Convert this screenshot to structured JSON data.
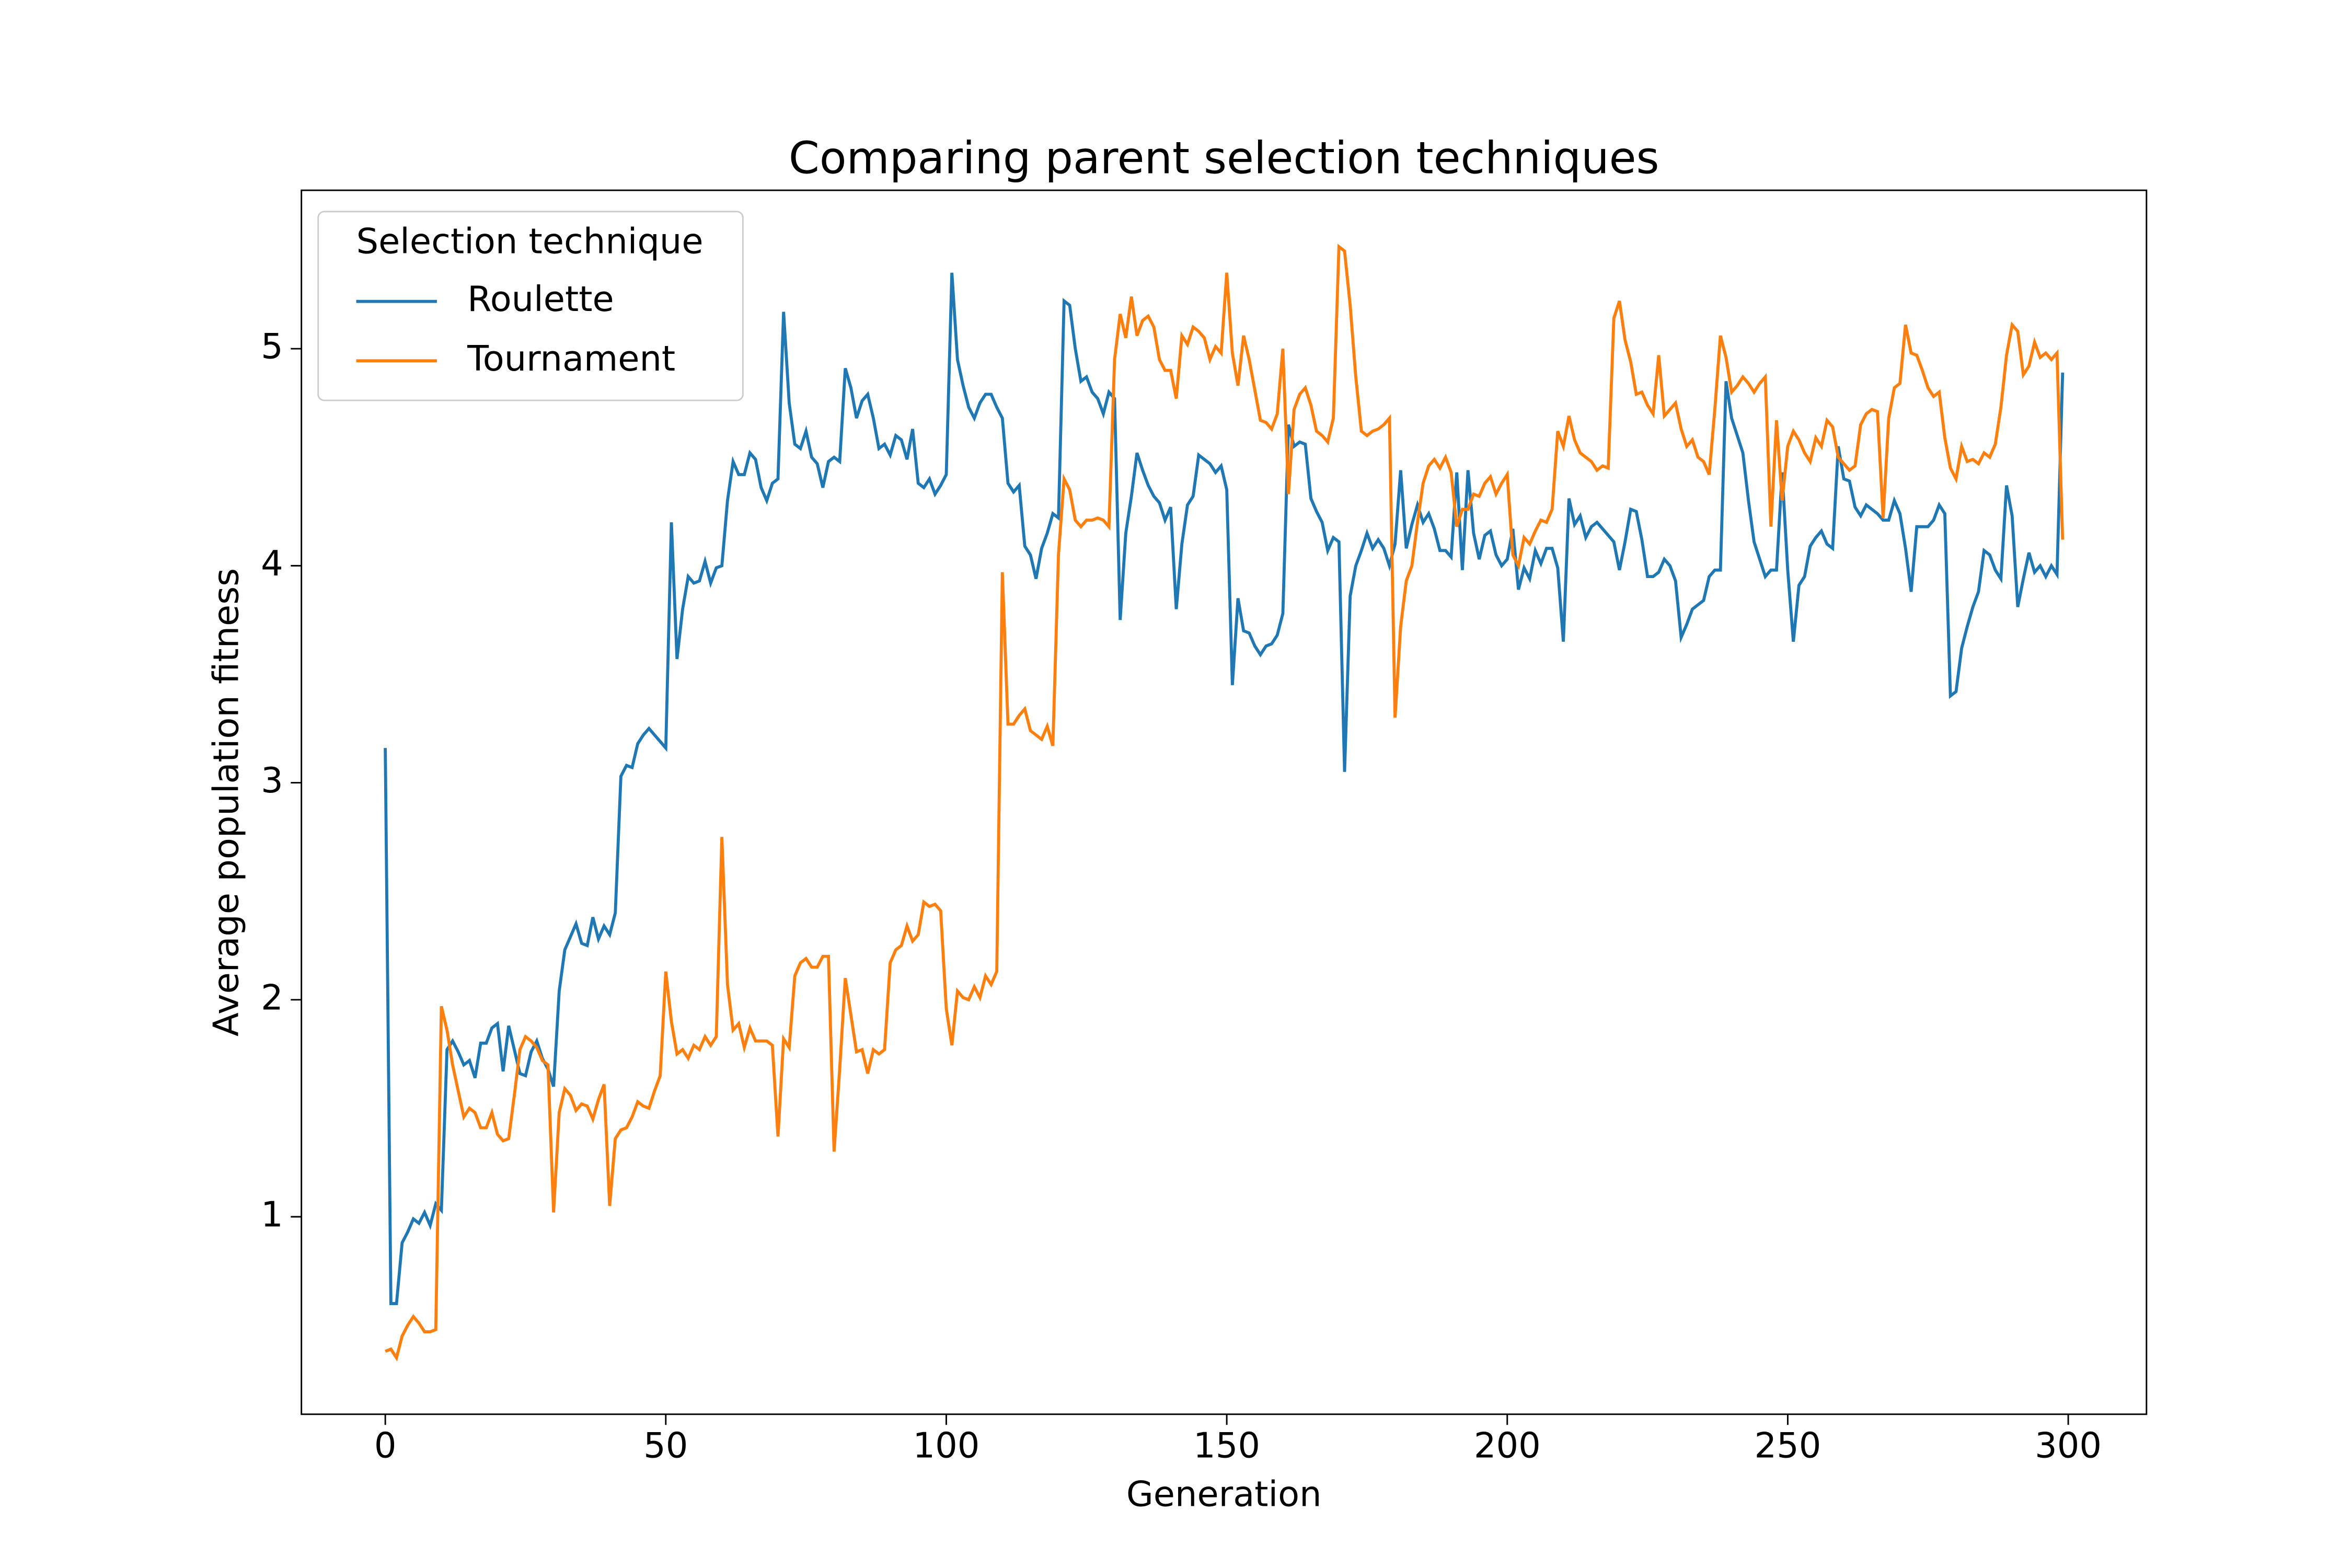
{
  "chart_data": {
    "type": "line",
    "title": "Comparing parent selection techniques",
    "xlabel": "Generation",
    "ylabel": "Average population fitness",
    "legend": "upper left",
    "legend_title": "Selection technique",
    "x": [
      0,
      1,
      2,
      3,
      4,
      5,
      6,
      7,
      8,
      9,
      10,
      11,
      12,
      13,
      14,
      15,
      16,
      17,
      18,
      19,
      20,
      21,
      22,
      23,
      24,
      25,
      26,
      27,
      28,
      29,
      30,
      31,
      32,
      33,
      34,
      35,
      36,
      37,
      38,
      39,
      40,
      41,
      42,
      43,
      44,
      45,
      46,
      47,
      48,
      49,
      50,
      51,
      52,
      53,
      54,
      55,
      56,
      57,
      58,
      59,
      60,
      61,
      62,
      63,
      64,
      65,
      66,
      67,
      68,
      69,
      70,
      71,
      72,
      73,
      74,
      75,
      76,
      77,
      78,
      79,
      80,
      81,
      82,
      83,
      84,
      85,
      86,
      87,
      88,
      89,
      90,
      91,
      92,
      93,
      94,
      95,
      96,
      97,
      98,
      99,
      100,
      101,
      102,
      103,
      104,
      105,
      106,
      107,
      108,
      109,
      110,
      111,
      112,
      113,
      114,
      115,
      116,
      117,
      118,
      119,
      120,
      121,
      122,
      123,
      124,
      125,
      126,
      127,
      128,
      129,
      130,
      131,
      132,
      133,
      134,
      135,
      136,
      137,
      138,
      139,
      140,
      141,
      142,
      143,
      144,
      145,
      146,
      147,
      148,
      149,
      150,
      151,
      152,
      153,
      154,
      155,
      156,
      157,
      158,
      159,
      160,
      161,
      162,
      163,
      164,
      165,
      166,
      167,
      168,
      169,
      170,
      171,
      172,
      173,
      174,
      175,
      176,
      177,
      178,
      179,
      180,
      181,
      182,
      183,
      184,
      185,
      186,
      187,
      188,
      189,
      190,
      191,
      192,
      193,
      194,
      195,
      196,
      197,
      198,
      199,
      200,
      201,
      202,
      203,
      204,
      205,
      206,
      207,
      208,
      209,
      210,
      211,
      212,
      213,
      214,
      215,
      216,
      217,
      218,
      219,
      220,
      221,
      222,
      223,
      224,
      225,
      226,
      227,
      228,
      229,
      230,
      231,
      232,
      233,
      234,
      235,
      236,
      237,
      238,
      239,
      240,
      241,
      242,
      243,
      244,
      245,
      246,
      247,
      248,
      249,
      250,
      251,
      252,
      253,
      254,
      255,
      256,
      257,
      258,
      259,
      260,
      261,
      262,
      263,
      264,
      265,
      266,
      267,
      268,
      269,
      270,
      271,
      272,
      273,
      274,
      275,
      276,
      277,
      278,
      279,
      280,
      281,
      282,
      283,
      284,
      285,
      286,
      287,
      288,
      289,
      290,
      291,
      292,
      293,
      294,
      295,
      296,
      297,
      298,
      299
    ],
    "series": [
      {
        "name": "Roulette",
        "color": "#1f77b4",
        "values": [
          3.16,
          0.6,
          0.6,
          0.88,
          0.93,
          0.99,
          0.97,
          1.02,
          0.96,
          1.06,
          1.03,
          1.77,
          1.81,
          1.76,
          1.7,
          1.72,
          1.64,
          1.8,
          1.8,
          1.87,
          1.89,
          1.67,
          1.88,
          1.77,
          1.66,
          1.65,
          1.76,
          1.81,
          1.73,
          1.68,
          1.6,
          2.04,
          2.23,
          2.29,
          2.35,
          2.26,
          2.25,
          2.38,
          2.28,
          2.34,
          2.3,
          2.4,
          3.03,
          3.08,
          3.07,
          3.18,
          3.22,
          3.25,
          3.22,
          3.19,
          3.16,
          4.2,
          3.57,
          3.8,
          3.95,
          3.92,
          3.93,
          4.02,
          3.92,
          3.99,
          4.0,
          4.3,
          4.48,
          4.42,
          4.42,
          4.52,
          4.49,
          4.36,
          4.3,
          4.38,
          4.4,
          5.17,
          4.75,
          4.56,
          4.54,
          4.62,
          4.5,
          4.47,
          4.36,
          4.48,
          4.5,
          4.48,
          4.91,
          4.82,
          4.68,
          4.76,
          4.79,
          4.68,
          4.54,
          4.56,
          4.51,
          4.6,
          4.58,
          4.49,
          4.63,
          4.38,
          4.36,
          4.4,
          4.33,
          4.37,
          4.42,
          5.35,
          4.95,
          4.83,
          4.73,
          4.68,
          4.75,
          4.79,
          4.79,
          4.73,
          4.68,
          4.38,
          4.34,
          4.37,
          4.09,
          4.05,
          3.94,
          4.08,
          4.15,
          4.24,
          4.22,
          5.22,
          5.2,
          5.0,
          4.85,
          4.87,
          4.8,
          4.77,
          4.7,
          4.8,
          4.77,
          3.75,
          4.15,
          4.32,
          4.52,
          4.44,
          4.37,
          4.32,
          4.29,
          4.21,
          4.27,
          3.8,
          4.1,
          4.28,
          4.32,
          4.51,
          4.49,
          4.47,
          4.43,
          4.46,
          4.35,
          3.45,
          3.85,
          3.7,
          3.69,
          3.63,
          3.59,
          3.63,
          3.64,
          3.68,
          3.78,
          4.65,
          4.55,
          4.57,
          4.56,
          4.31,
          4.25,
          4.2,
          4.07,
          4.13,
          4.11,
          3.05,
          3.86,
          4.0,
          4.07,
          4.15,
          4.08,
          4.12,
          4.08,
          4.0,
          4.1,
          4.44,
          4.08,
          4.19,
          4.28,
          4.2,
          4.24,
          4.17,
          4.07,
          4.07,
          4.04,
          4.43,
          3.98,
          4.44,
          4.15,
          4.03,
          4.14,
          4.16,
          4.05,
          4.0,
          4.03,
          4.17,
          3.89,
          3.99,
          3.94,
          4.07,
          4.01,
          4.08,
          4.08,
          3.99,
          3.65,
          4.31,
          4.19,
          4.23,
          4.13,
          4.18,
          4.2,
          4.17,
          4.14,
          4.11,
          3.98,
          4.11,
          4.26,
          4.25,
          4.12,
          3.95,
          3.95,
          3.97,
          4.03,
          4.0,
          3.93,
          3.67,
          3.73,
          3.8,
          3.82,
          3.84,
          3.95,
          3.98,
          3.98,
          4.85,
          4.68,
          4.6,
          4.52,
          4.3,
          4.11,
          4.03,
          3.95,
          3.98,
          3.98,
          4.43,
          3.98,
          3.65,
          3.91,
          3.95,
          4.09,
          4.13,
          4.16,
          4.1,
          4.08,
          4.55,
          4.4,
          4.39,
          4.27,
          4.23,
          4.28,
          4.26,
          4.24,
          4.21,
          4.21,
          4.3,
          4.24,
          4.08,
          3.88,
          4.18,
          4.18,
          4.18,
          4.21,
          4.28,
          4.24,
          3.4,
          3.42,
          3.62,
          3.72,
          3.81,
          3.88,
          4.07,
          4.05,
          3.98,
          3.94,
          4.37,
          4.23,
          3.81,
          3.94,
          4.06,
          3.97,
          4.0,
          3.95,
          4.0,
          3.96,
          4.89
        ]
      },
      {
        "name": "Tournament",
        "color": "#ff7f0e",
        "values": [
          0.38,
          0.39,
          0.35,
          0.45,
          0.5,
          0.54,
          0.51,
          0.47,
          0.47,
          0.48,
          1.97,
          1.86,
          1.7,
          1.58,
          1.46,
          1.5,
          1.48,
          1.41,
          1.41,
          1.48,
          1.38,
          1.35,
          1.36,
          1.56,
          1.77,
          1.83,
          1.81,
          1.78,
          1.72,
          1.7,
          1.02,
          1.48,
          1.59,
          1.56,
          1.49,
          1.52,
          1.51,
          1.45,
          1.54,
          1.61,
          1.05,
          1.36,
          1.4,
          1.41,
          1.46,
          1.53,
          1.51,
          1.5,
          1.58,
          1.65,
          2.13,
          1.9,
          1.75,
          1.77,
          1.73,
          1.79,
          1.77,
          1.83,
          1.79,
          1.83,
          2.75,
          2.07,
          1.86,
          1.89,
          1.78,
          1.87,
          1.81,
          1.81,
          1.81,
          1.79,
          1.37,
          1.82,
          1.78,
          2.11,
          2.17,
          2.19,
          2.15,
          2.15,
          2.2,
          2.2,
          1.3,
          1.68,
          2.1,
          1.93,
          1.76,
          1.77,
          1.66,
          1.77,
          1.75,
          1.77,
          2.17,
          2.23,
          2.25,
          2.34,
          2.27,
          2.3,
          2.45,
          2.43,
          2.44,
          2.41,
          1.96,
          1.79,
          2.04,
          2.01,
          2.0,
          2.06,
          2.01,
          2.11,
          2.07,
          2.13,
          3.97,
          3.27,
          3.27,
          3.31,
          3.34,
          3.24,
          3.22,
          3.2,
          3.26,
          3.17,
          4.05,
          4.4,
          4.35,
          4.21,
          4.18,
          4.21,
          4.21,
          4.22,
          4.21,
          4.18,
          4.95,
          5.16,
          5.05,
          5.24,
          5.06,
          5.13,
          5.15,
          5.1,
          4.95,
          4.9,
          4.9,
          4.77,
          5.06,
          5.02,
          5.1,
          5.08,
          5.05,
          4.95,
          5.01,
          4.98,
          5.35,
          4.98,
          4.83,
          5.06,
          4.95,
          4.81,
          4.67,
          4.66,
          4.63,
          4.7,
          5.0,
          4.33,
          4.72,
          4.79,
          4.82,
          4.74,
          4.62,
          4.6,
          4.57,
          4.68,
          5.47,
          5.45,
          5.2,
          4.87,
          4.62,
          4.6,
          4.62,
          4.63,
          4.65,
          4.68,
          3.3,
          3.72,
          3.93,
          4.0,
          4.2,
          4.38,
          4.46,
          4.49,
          4.45,
          4.5,
          4.43,
          4.18,
          4.26,
          4.26,
          4.33,
          4.32,
          4.38,
          4.41,
          4.33,
          4.38,
          4.42,
          4.05,
          4.0,
          4.13,
          4.1,
          4.16,
          4.21,
          4.2,
          4.26,
          4.62,
          4.55,
          4.69,
          4.58,
          4.52,
          4.5,
          4.48,
          4.44,
          4.46,
          4.45,
          5.14,
          5.22,
          5.04,
          4.94,
          4.79,
          4.8,
          4.74,
          4.7,
          4.97,
          4.69,
          4.72,
          4.75,
          4.63,
          4.55,
          4.58,
          4.5,
          4.48,
          4.42,
          4.72,
          5.06,
          4.96,
          4.8,
          4.83,
          4.87,
          4.84,
          4.8,
          4.84,
          4.87,
          4.18,
          4.67,
          4.3,
          4.55,
          4.62,
          4.58,
          4.52,
          4.48,
          4.59,
          4.55,
          4.67,
          4.64,
          4.5,
          4.47,
          4.44,
          4.46,
          4.65,
          4.7,
          4.72,
          4.71,
          4.22,
          4.68,
          4.82,
          4.84,
          5.11,
          4.98,
          4.97,
          4.9,
          4.82,
          4.78,
          4.8,
          4.59,
          4.45,
          4.4,
          4.55,
          4.48,
          4.49,
          4.47,
          4.52,
          4.5,
          4.56,
          4.73,
          4.97,
          5.11,
          5.08,
          4.88,
          4.92,
          5.03,
          4.96,
          4.98,
          4.95,
          4.98,
          4.12
        ]
      }
    ],
    "xlim": [
      -14.95,
      313.95
    ],
    "xticks": [
      0,
      50,
      100,
      150,
      200,
      250,
      300
    ],
    "ylim": [
      0.09,
      5.73
    ],
    "yticks": [
      1,
      2,
      3,
      4,
      5
    ]
  }
}
